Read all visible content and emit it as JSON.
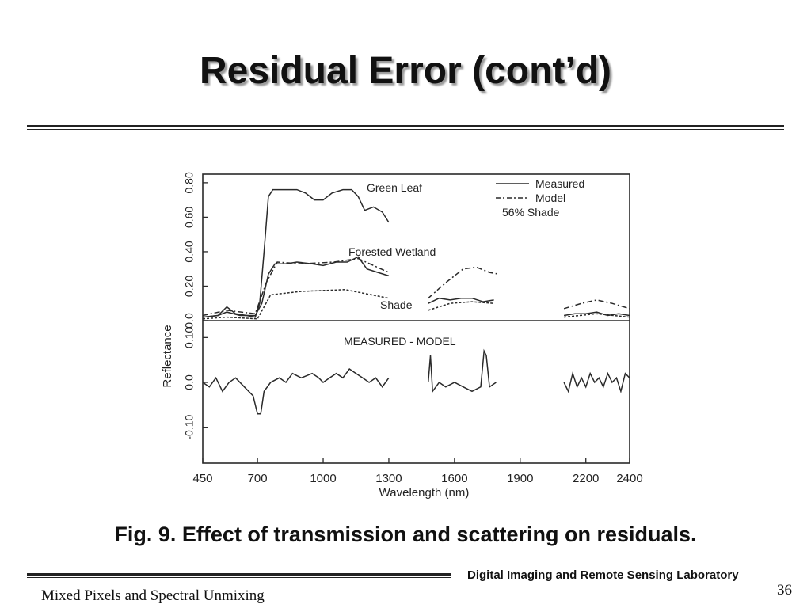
{
  "slide": {
    "title": "Residual Error (cont’d)",
    "caption": "Fig. 9. Effect of transmission and scattering on residuals.",
    "lab_name": "Digital Imaging and Remote Sensing Laboratory",
    "page_number": "36",
    "footer_title": "Mixed Pixels and Spectral Unmixing"
  },
  "chart_data": {
    "type": "line",
    "xlabel": "Wavelength (nm)",
    "ylabel": "Reflectance",
    "xlim": [
      450,
      2400
    ],
    "x_ticks": [
      450,
      700,
      1000,
      1300,
      1600,
      1900,
      2200,
      2400
    ],
    "x_ticks_marked": [
      450,
      700,
      1000,
      1300,
      1600,
      1900,
      2200,
      2400
    ],
    "upper_panel": {
      "y_ticks": [
        "0.0",
        "0.20",
        "0.40",
        "0.60",
        "0.80"
      ],
      "ylim": [
        0,
        0.85
      ],
      "labels": {
        "green_leaf": "Green Leaf",
        "forested_wetland": "Forested Wetland",
        "shade": "Shade"
      },
      "series": [
        {
          "name": "Green Leaf",
          "style": "measured",
          "segments": [
            [
              [
                450,
                0.02
              ],
              [
                520,
                0.03
              ],
              [
                560,
                0.08
              ],
              [
                600,
                0.04
              ],
              [
                650,
                0.03
              ],
              [
                690,
                0.02
              ],
              [
                710,
                0.1
              ],
              [
                730,
                0.4
              ],
              [
                750,
                0.72
              ],
              [
                770,
                0.76
              ],
              [
                820,
                0.76
              ],
              [
                880,
                0.76
              ],
              [
                920,
                0.74
              ],
              [
                960,
                0.7
              ],
              [
                1000,
                0.7
              ],
              [
                1040,
                0.74
              ],
              [
                1090,
                0.76
              ],
              [
                1130,
                0.76
              ],
              [
                1160,
                0.72
              ],
              [
                1190,
                0.64
              ],
              [
                1230,
                0.66
              ],
              [
                1270,
                0.63
              ],
              [
                1300,
                0.57
              ]
            ]
          ]
        },
        {
          "name": "Forested Wetland",
          "style": "measured",
          "segments": [
            [
              [
                450,
                0.02
              ],
              [
                520,
                0.03
              ],
              [
                560,
                0.05
              ],
              [
                620,
                0.03
              ],
              [
                690,
                0.03
              ],
              [
                720,
                0.1
              ],
              [
                750,
                0.27
              ],
              [
                780,
                0.33
              ],
              [
                830,
                0.33
              ],
              [
                880,
                0.34
              ],
              [
                950,
                0.33
              ],
              [
                1000,
                0.32
              ],
              [
                1060,
                0.34
              ],
              [
                1110,
                0.34
              ],
              [
                1160,
                0.37
              ],
              [
                1200,
                0.3
              ],
              [
                1250,
                0.28
              ],
              [
                1300,
                0.26
              ]
            ],
            [
              [
                1480,
                0.1
              ],
              [
                1530,
                0.13
              ],
              [
                1580,
                0.12
              ],
              [
                1630,
                0.13
              ],
              [
                1680,
                0.13
              ],
              [
                1730,
                0.11
              ],
              [
                1780,
                0.12
              ]
            ],
            [
              [
                2100,
                0.03
              ],
              [
                2150,
                0.04
              ],
              [
                2200,
                0.04
              ],
              [
                2250,
                0.05
              ],
              [
                2300,
                0.03
              ],
              [
                2350,
                0.04
              ],
              [
                2400,
                0.03
              ]
            ]
          ]
        },
        {
          "name": "Forested Wetland",
          "style": "model",
          "segments": [
            [
              [
                450,
                0.03
              ],
              [
                560,
                0.06
              ],
              [
                690,
                0.04
              ],
              [
                740,
                0.22
              ],
              [
                790,
                0.34
              ],
              [
                900,
                0.33
              ],
              [
                1050,
                0.34
              ],
              [
                1160,
                0.36
              ],
              [
                1300,
                0.28
              ]
            ],
            [
              [
                1480,
                0.13
              ],
              [
                1560,
                0.22
              ],
              [
                1640,
                0.3
              ],
              [
                1700,
                0.31
              ],
              [
                1760,
                0.28
              ],
              [
                1800,
                0.27
              ]
            ],
            [
              [
                2100,
                0.07
              ],
              [
                2180,
                0.1
              ],
              [
                2250,
                0.12
              ],
              [
                2320,
                0.1
              ],
              [
                2400,
                0.07
              ]
            ]
          ]
        },
        {
          "name": "56% Shade",
          "style": "shade",
          "segments": [
            [
              [
                450,
                0.01
              ],
              [
                560,
                0.02
              ],
              [
                700,
                0.01
              ],
              [
                760,
                0.15
              ],
              [
                900,
                0.17
              ],
              [
                1100,
                0.18
              ],
              [
                1300,
                0.13
              ]
            ],
            [
              [
                1480,
                0.06
              ],
              [
                1580,
                0.1
              ],
              [
                1680,
                0.11
              ],
              [
                1780,
                0.1
              ]
            ],
            [
              [
                2100,
                0.02
              ],
              [
                2250,
                0.04
              ],
              [
                2400,
                0.02
              ]
            ]
          ]
        }
      ]
    },
    "lower_panel": {
      "label": "MEASURED - MODEL",
      "y_ticks": [
        "-0.10",
        "0.0",
        "0.10"
      ],
      "ylim": [
        -0.18,
        0.12
      ],
      "series": [
        {
          "name": "MEASURED - MODEL",
          "segments": [
            [
              [
                450,
                0.0
              ],
              [
                480,
                -0.01
              ],
              [
                510,
                0.01
              ],
              [
                540,
                -0.02
              ],
              [
                570,
                0.0
              ],
              [
                600,
                0.01
              ],
              [
                640,
                -0.01
              ],
              [
                680,
                -0.03
              ],
              [
                700,
                -0.07
              ],
              [
                715,
                -0.07
              ],
              [
                730,
                -0.02
              ],
              [
                760,
                0.0
              ],
              [
                800,
                0.01
              ],
              [
                830,
                0.0
              ],
              [
                860,
                0.02
              ],
              [
                900,
                0.01
              ],
              [
                950,
                0.02
              ],
              [
                980,
                0.01
              ],
              [
                1000,
                0.0
              ],
              [
                1030,
                0.01
              ],
              [
                1060,
                0.02
              ],
              [
                1090,
                0.01
              ],
              [
                1120,
                0.03
              ],
              [
                1150,
                0.02
              ],
              [
                1180,
                0.01
              ],
              [
                1210,
                0.0
              ],
              [
                1240,
                0.01
              ],
              [
                1270,
                -0.01
              ],
              [
                1300,
                0.01
              ]
            ],
            [
              [
                1480,
                0.0
              ],
              [
                1490,
                0.06
              ],
              [
                1500,
                -0.02
              ],
              [
                1530,
                0.0
              ],
              [
                1560,
                -0.01
              ],
              [
                1600,
                0.0
              ],
              [
                1640,
                -0.01
              ],
              [
                1680,
                -0.02
              ],
              [
                1720,
                -0.01
              ],
              [
                1735,
                0.07
              ],
              [
                1745,
                0.06
              ],
              [
                1760,
                -0.01
              ],
              [
                1790,
                0.0
              ]
            ],
            [
              [
                2100,
                0.0
              ],
              [
                2120,
                -0.02
              ],
              [
                2140,
                0.02
              ],
              [
                2160,
                -0.01
              ],
              [
                2180,
                0.01
              ],
              [
                2200,
                -0.01
              ],
              [
                2220,
                0.02
              ],
              [
                2240,
                0.0
              ],
              [
                2260,
                0.01
              ],
              [
                2280,
                -0.01
              ],
              [
                2300,
                0.02
              ],
              [
                2320,
                0.0
              ],
              [
                2340,
                0.01
              ],
              [
                2360,
                -0.02
              ],
              [
                2380,
                0.02
              ],
              [
                2400,
                0.01
              ]
            ]
          ]
        }
      ]
    },
    "legend": {
      "position": "top-right",
      "entries": [
        {
          "label": "Measured",
          "style": "solid"
        },
        {
          "label": "Model",
          "style": "dash-dot"
        },
        {
          "label": "56% Shade",
          "style": "none"
        }
      ]
    },
    "colors": {
      "line": "#2a2a2a",
      "text": "#222222"
    }
  }
}
